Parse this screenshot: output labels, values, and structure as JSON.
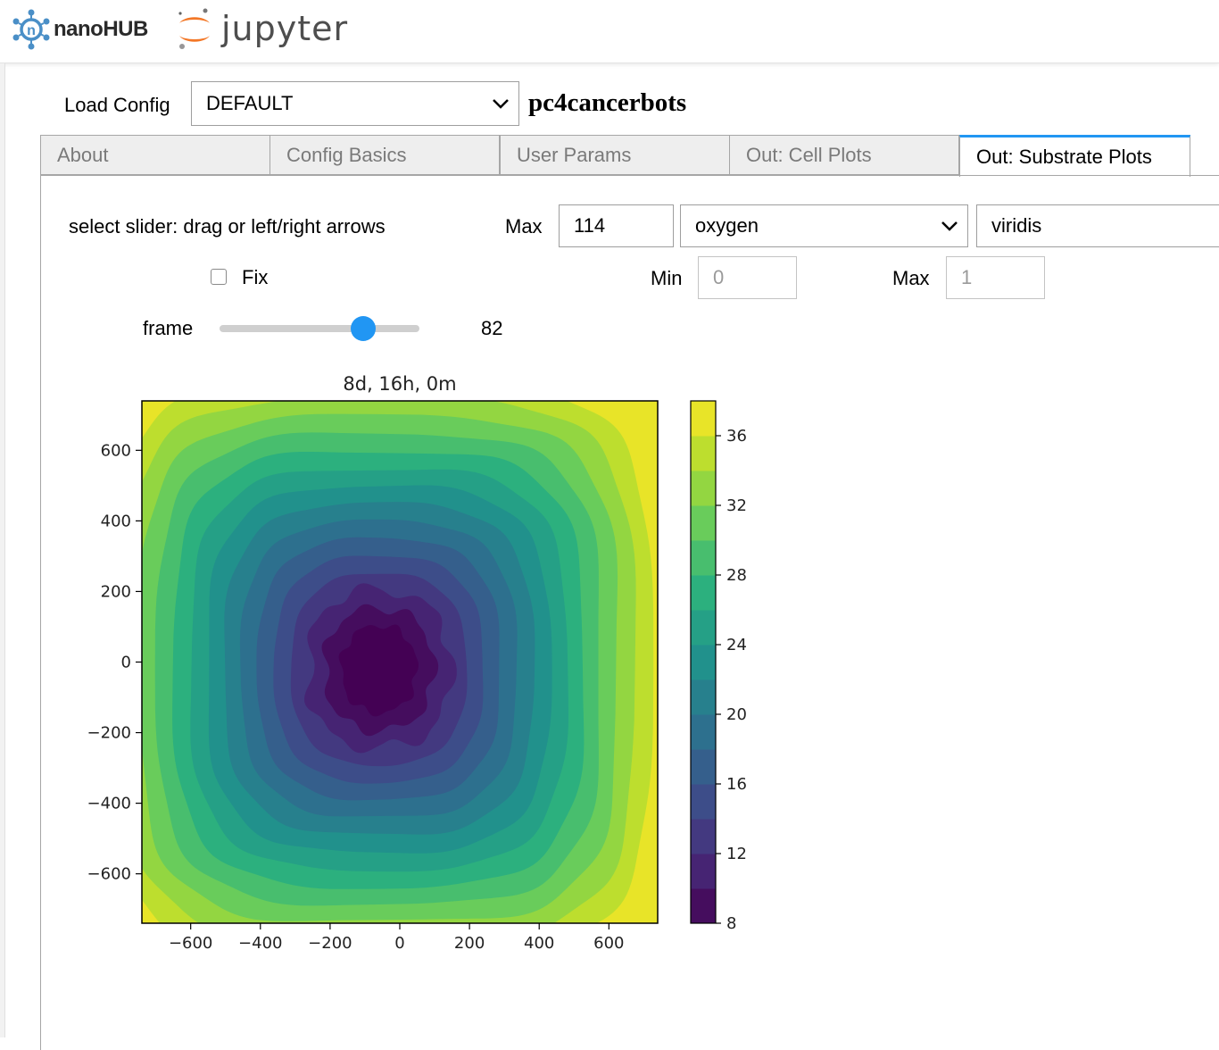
{
  "header": {
    "logo_text": "nanoHUB",
    "app_logo_text": "jupyter"
  },
  "config": {
    "load_label": "Load Config",
    "selected": "DEFAULT",
    "app_name": "pc4cancerbots"
  },
  "tabs": [
    {
      "label": "About",
      "active": false
    },
    {
      "label": "Config Basics",
      "active": false
    },
    {
      "label": "User Params",
      "active": false
    },
    {
      "label": "Out: Cell Plots",
      "active": false
    },
    {
      "label": "Out: Substrate Plots",
      "active": true
    }
  ],
  "controls": {
    "instructions": "select slider: drag or left/right arrows",
    "max_label": "Max",
    "max_value": "114",
    "substrate": "oxygen",
    "colormap": "viridis",
    "fix_label": "Fix",
    "fix_checked": false,
    "min_label": "Min",
    "min_value": "0",
    "max2_label": "Max",
    "max2_value": "1",
    "frame_label": "frame",
    "frame_value": "82",
    "frame_fraction": 0.72
  },
  "colors": {
    "accent": "#2196f3",
    "viridis_yellow": "#fde725",
    "viridis_purple": "#440154"
  },
  "chart_data": {
    "type": "heatmap",
    "title": "8d, 16h, 0m",
    "xlabel": "",
    "ylabel": "",
    "xlim": [
      -740,
      740
    ],
    "ylim": [
      -740,
      740
    ],
    "xticks": [
      -600,
      -400,
      -200,
      0,
      200,
      400,
      600
    ],
    "yticks": [
      600,
      400,
      200,
      0,
      -200,
      -400,
      -600
    ],
    "xtick_labels": [
      "−600",
      "−400",
      "−200",
      "0",
      "200",
      "400",
      "600"
    ],
    "ytick_labels": [
      "600",
      "400",
      "200",
      "0",
      "−200",
      "−400",
      "−600"
    ],
    "colormap": "viridis",
    "center": [
      -60,
      -20
    ],
    "levels": [
      8,
      10,
      12,
      14,
      16,
      18,
      20,
      22,
      24,
      26,
      28,
      30,
      32,
      34,
      36,
      38
    ],
    "colorbar_ticks": [
      36,
      32,
      28,
      24,
      20,
      16,
      12,
      8
    ],
    "colorbar_range": [
      8,
      38
    ],
    "band_colors": [
      "#440154",
      "#472d7b",
      "#3b528b",
      "#2c728e",
      "#21918c",
      "#28ae80",
      "#5ec962",
      "#addc30",
      "#fde725"
    ]
  }
}
